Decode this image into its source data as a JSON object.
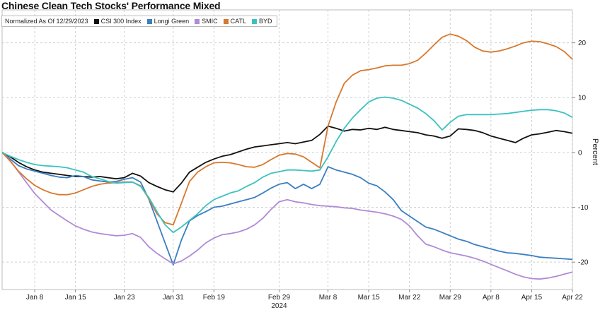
{
  "title": "Chinese Clean Tech Stocks' Performance Mixed",
  "chart_data": {
    "type": "line",
    "title": "Chinese Clean Tech Stocks' Performance Mixed",
    "subtitle": "Normalized As Of 12/29/2023",
    "ylabel": "Percent",
    "xlabel": "2024",
    "ylim": [
      -25,
      26
    ],
    "y_ticks": [
      20,
      10,
      0,
      -10,
      -20
    ],
    "y_tick_labels": [
      "20",
      "10",
      "0",
      "-10",
      "-20"
    ],
    "x_ticks": [
      {
        "label": "Jan 8",
        "index": 4
      },
      {
        "label": "Jan 15",
        "index": 9
      },
      {
        "label": "Jan 23",
        "index": 15
      },
      {
        "label": "Jan 31",
        "index": 21
      },
      {
        "label": "Feb 19",
        "index": 26
      },
      {
        "label": "Feb 29",
        "index": 34
      },
      {
        "label": "Mar 8",
        "index": 40
      },
      {
        "label": "Mar 15",
        "index": 45
      },
      {
        "label": "Mar 22",
        "index": 50
      },
      {
        "label": "Mar 29",
        "index": 55
      },
      {
        "label": "Apr 8",
        "index": 60
      },
      {
        "label": "Apr 15",
        "index": 65
      },
      {
        "label": "Apr 22",
        "index": 70
      }
    ],
    "x_year_label": "2024",
    "grid": true,
    "legend_position": "top-left",
    "n_points": 71,
    "series": [
      {
        "name": "CSI 300 Index",
        "color": "#111111",
        "values": [
          0,
          -0.8,
          -1.8,
          -2.6,
          -3.2,
          -3.6,
          -3.8,
          -4,
          -4.2,
          -4.4,
          -4.4,
          -4.5,
          -4.4,
          -4.6,
          -4.8,
          -4.6,
          -3.8,
          -4.3,
          -5.5,
          -6.2,
          -6.8,
          -7.2,
          -5.6,
          -3.6,
          -2.7,
          -1.8,
          -1.2,
          -0.7,
          -0.4,
          0.1,
          0.6,
          1,
          1.2,
          1.4,
          1.6,
          1.8,
          1.6,
          1.9,
          2.2,
          3.3,
          4.8,
          4.4,
          3.9,
          4.2,
          4.1,
          4.4,
          4.2,
          4.6,
          4.2,
          4,
          3.8,
          3.6,
          3.2,
          3,
          2.6,
          3,
          4.3,
          4.2,
          4,
          3.6,
          3,
          2.6,
          2.2,
          1.8,
          2.6,
          3.2,
          3.4,
          3.7,
          4,
          3.8,
          3.5
        ]
      },
      {
        "name": "Longi Green",
        "color": "#3a7fc1",
        "values": [
          0,
          -1.2,
          -2.4,
          -3,
          -3.4,
          -3.8,
          -4.2,
          -4.5,
          -4.6,
          -4.2,
          -4.4,
          -5,
          -5.2,
          -5.4,
          -5.3,
          -4.9,
          -4.6,
          -5.4,
          -8.5,
          -12.5,
          -16.5,
          -20.5,
          -16,
          -12.5,
          -11.5,
          -10.8,
          -10,
          -9.8,
          -9.4,
          -9,
          -8.6,
          -8.2,
          -7.4,
          -6.5,
          -5.8,
          -5.5,
          -6.6,
          -5.8,
          -6.6,
          -5.8,
          -2.6,
          -3.2,
          -3.6,
          -4,
          -4.6,
          -5.6,
          -6.1,
          -7.2,
          -8.6,
          -10.6,
          -11.6,
          -12.6,
          -13.6,
          -14,
          -14.6,
          -15.2,
          -15.8,
          -16.2,
          -16.8,
          -17.2,
          -17.6,
          -18,
          -18.3,
          -18.4,
          -18.6,
          -18.8,
          -19.1,
          -19.2,
          -19.3,
          -19.4,
          -19.5
        ]
      },
      {
        "name": "SMIC",
        "color": "#b08ad8",
        "values": [
          0,
          -1.5,
          -3.5,
          -5.5,
          -7.5,
          -9,
          -10.5,
          -11.5,
          -12.5,
          -13.4,
          -14,
          -14.5,
          -14.8,
          -15,
          -15.2,
          -15.1,
          -14.8,
          -15.5,
          -17.2,
          -18.4,
          -19.4,
          -20.3,
          -19.8,
          -18.9,
          -17.8,
          -16.5,
          -15.6,
          -15,
          -14.8,
          -14.5,
          -14,
          -13.2,
          -12,
          -10.4,
          -9,
          -8.6,
          -9,
          -9.2,
          -9.5,
          -9.7,
          -9.8,
          -9.9,
          -10.1,
          -10.2,
          -10.5,
          -10.7,
          -10.9,
          -11.2,
          -11.6,
          -12.2,
          -13.4,
          -15.2,
          -16.7,
          -17.2,
          -17.8,
          -18.3,
          -18.6,
          -18.9,
          -19.3,
          -19.8,
          -20.4,
          -21,
          -21.6,
          -22.2,
          -22.7,
          -23,
          -23.1,
          -22.9,
          -22.6,
          -22.2,
          -21.8
        ]
      },
      {
        "name": "CATL",
        "color": "#d9772b",
        "values": [
          0,
          -1.6,
          -3.4,
          -4.8,
          -6,
          -6.8,
          -7.4,
          -7.7,
          -7.7,
          -7.4,
          -6.8,
          -6.2,
          -5.8,
          -5.6,
          -5.5,
          -5.4,
          -5.4,
          -6.1,
          -8.4,
          -11.2,
          -12.8,
          -13.2,
          -9.3,
          -5.3,
          -3.6,
          -2.6,
          -1.9,
          -1.8,
          -1.9,
          -2.2,
          -2.6,
          -2.7,
          -2.2,
          -1.3,
          -0.5,
          -0.2,
          -0.3,
          -0.8,
          -1.8,
          -2.8,
          4.8,
          9.2,
          12.6,
          14.1,
          14.9,
          15.1,
          15.4,
          15.8,
          15.9,
          15.9,
          16.2,
          16.8,
          18.1,
          19.6,
          21,
          21.6,
          21.2,
          20.4,
          19.2,
          18.5,
          18.3,
          18.5,
          18.9,
          19.4,
          20,
          20.3,
          20.2,
          19.8,
          19.3,
          18.4,
          17
        ]
      },
      {
        "name": "BYD",
        "color": "#3cc1c1",
        "values": [
          0,
          -0.7,
          -1.3,
          -1.8,
          -2.2,
          -2.4,
          -2.5,
          -2.6,
          -2.8,
          -3.2,
          -3.6,
          -4.4,
          -4.8,
          -5.3,
          -5.6,
          -5.5,
          -5.4,
          -6.2,
          -8.2,
          -10.8,
          -13.2,
          -14.6,
          -13.6,
          -12.4,
          -11.2,
          -9.7,
          -8.6,
          -8,
          -7.4,
          -7,
          -6.2,
          -5.5,
          -4.5,
          -3.8,
          -3.5,
          -3.2,
          -3.2,
          -3.3,
          -3.4,
          -3.2,
          -0.8,
          2,
          4.4,
          6.3,
          7.8,
          9.2,
          9.9,
          10.1,
          9.9,
          9.5,
          8.8,
          8.1,
          7.1,
          5.8,
          4.1,
          5.5,
          6.6,
          6.9,
          6.9,
          6.9,
          6.9,
          7,
          7.1,
          7.3,
          7.5,
          7.7,
          7.8,
          7.8,
          7.6,
          7.2,
          6.4
        ]
      }
    ]
  }
}
